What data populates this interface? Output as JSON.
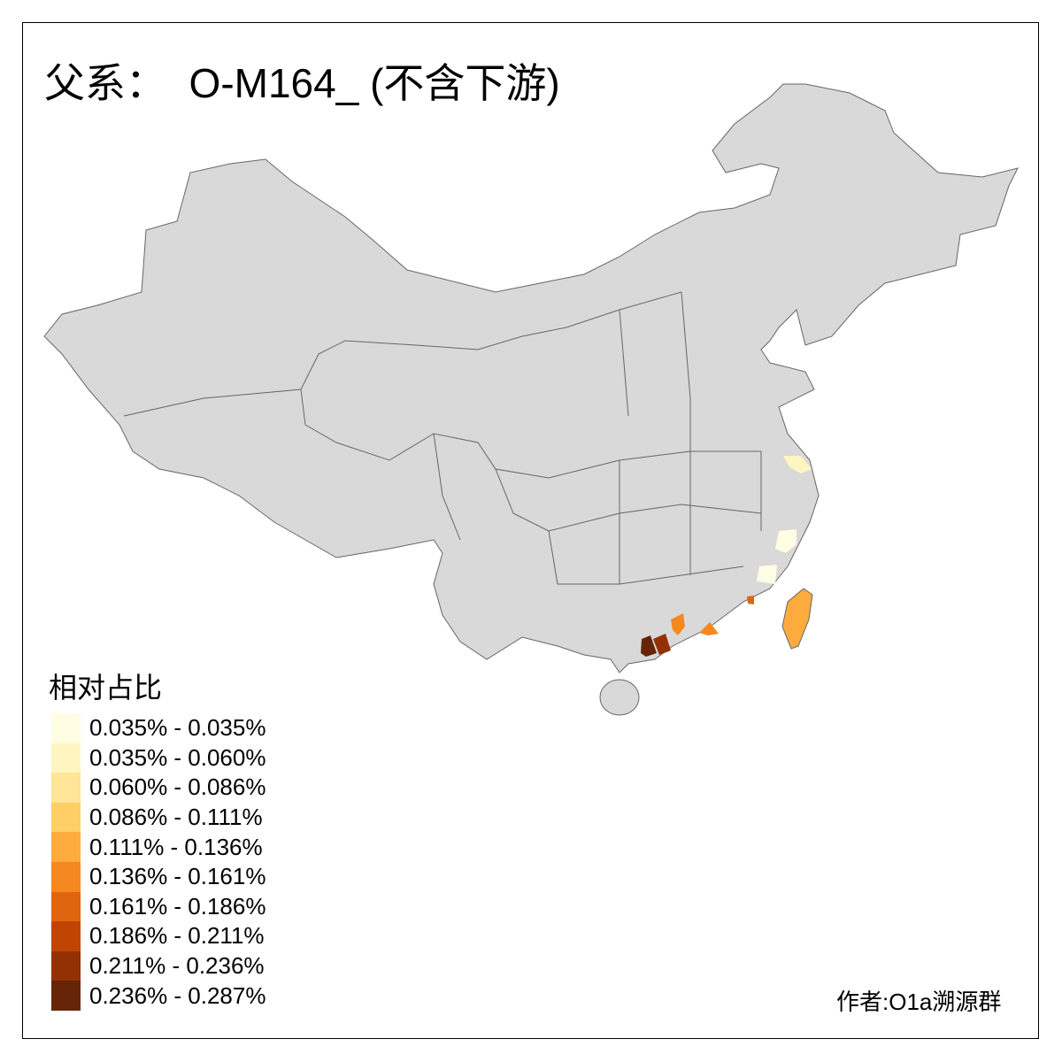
{
  "title": "父系：  O-M164_ (不含下游)",
  "legend": {
    "title": "相对占比",
    "items": [
      {
        "label": "0.035% - 0.035%",
        "color": "#fffde3"
      },
      {
        "label": "0.035% - 0.060%",
        "color": "#fff5c0"
      },
      {
        "label": "0.060% - 0.086%",
        "color": "#fee597"
      },
      {
        "label": "0.086% - 0.111%",
        "color": "#fecf66"
      },
      {
        "label": "0.111% - 0.136%",
        "color": "#fdab3d"
      },
      {
        "label": "0.136% - 0.161%",
        "color": "#f5881f"
      },
      {
        "label": "0.161% - 0.186%",
        "color": "#e0650f"
      },
      {
        "label": "0.186% - 0.211%",
        "color": "#c04503"
      },
      {
        "label": "0.211% - 0.236%",
        "color": "#933104"
      },
      {
        "label": "0.236% - 0.287%",
        "color": "#662506"
      }
    ]
  },
  "map": {
    "base_color": "#d9d9d9",
    "border_color": "#666666"
  },
  "credit": "作者:O1a溯源群"
}
